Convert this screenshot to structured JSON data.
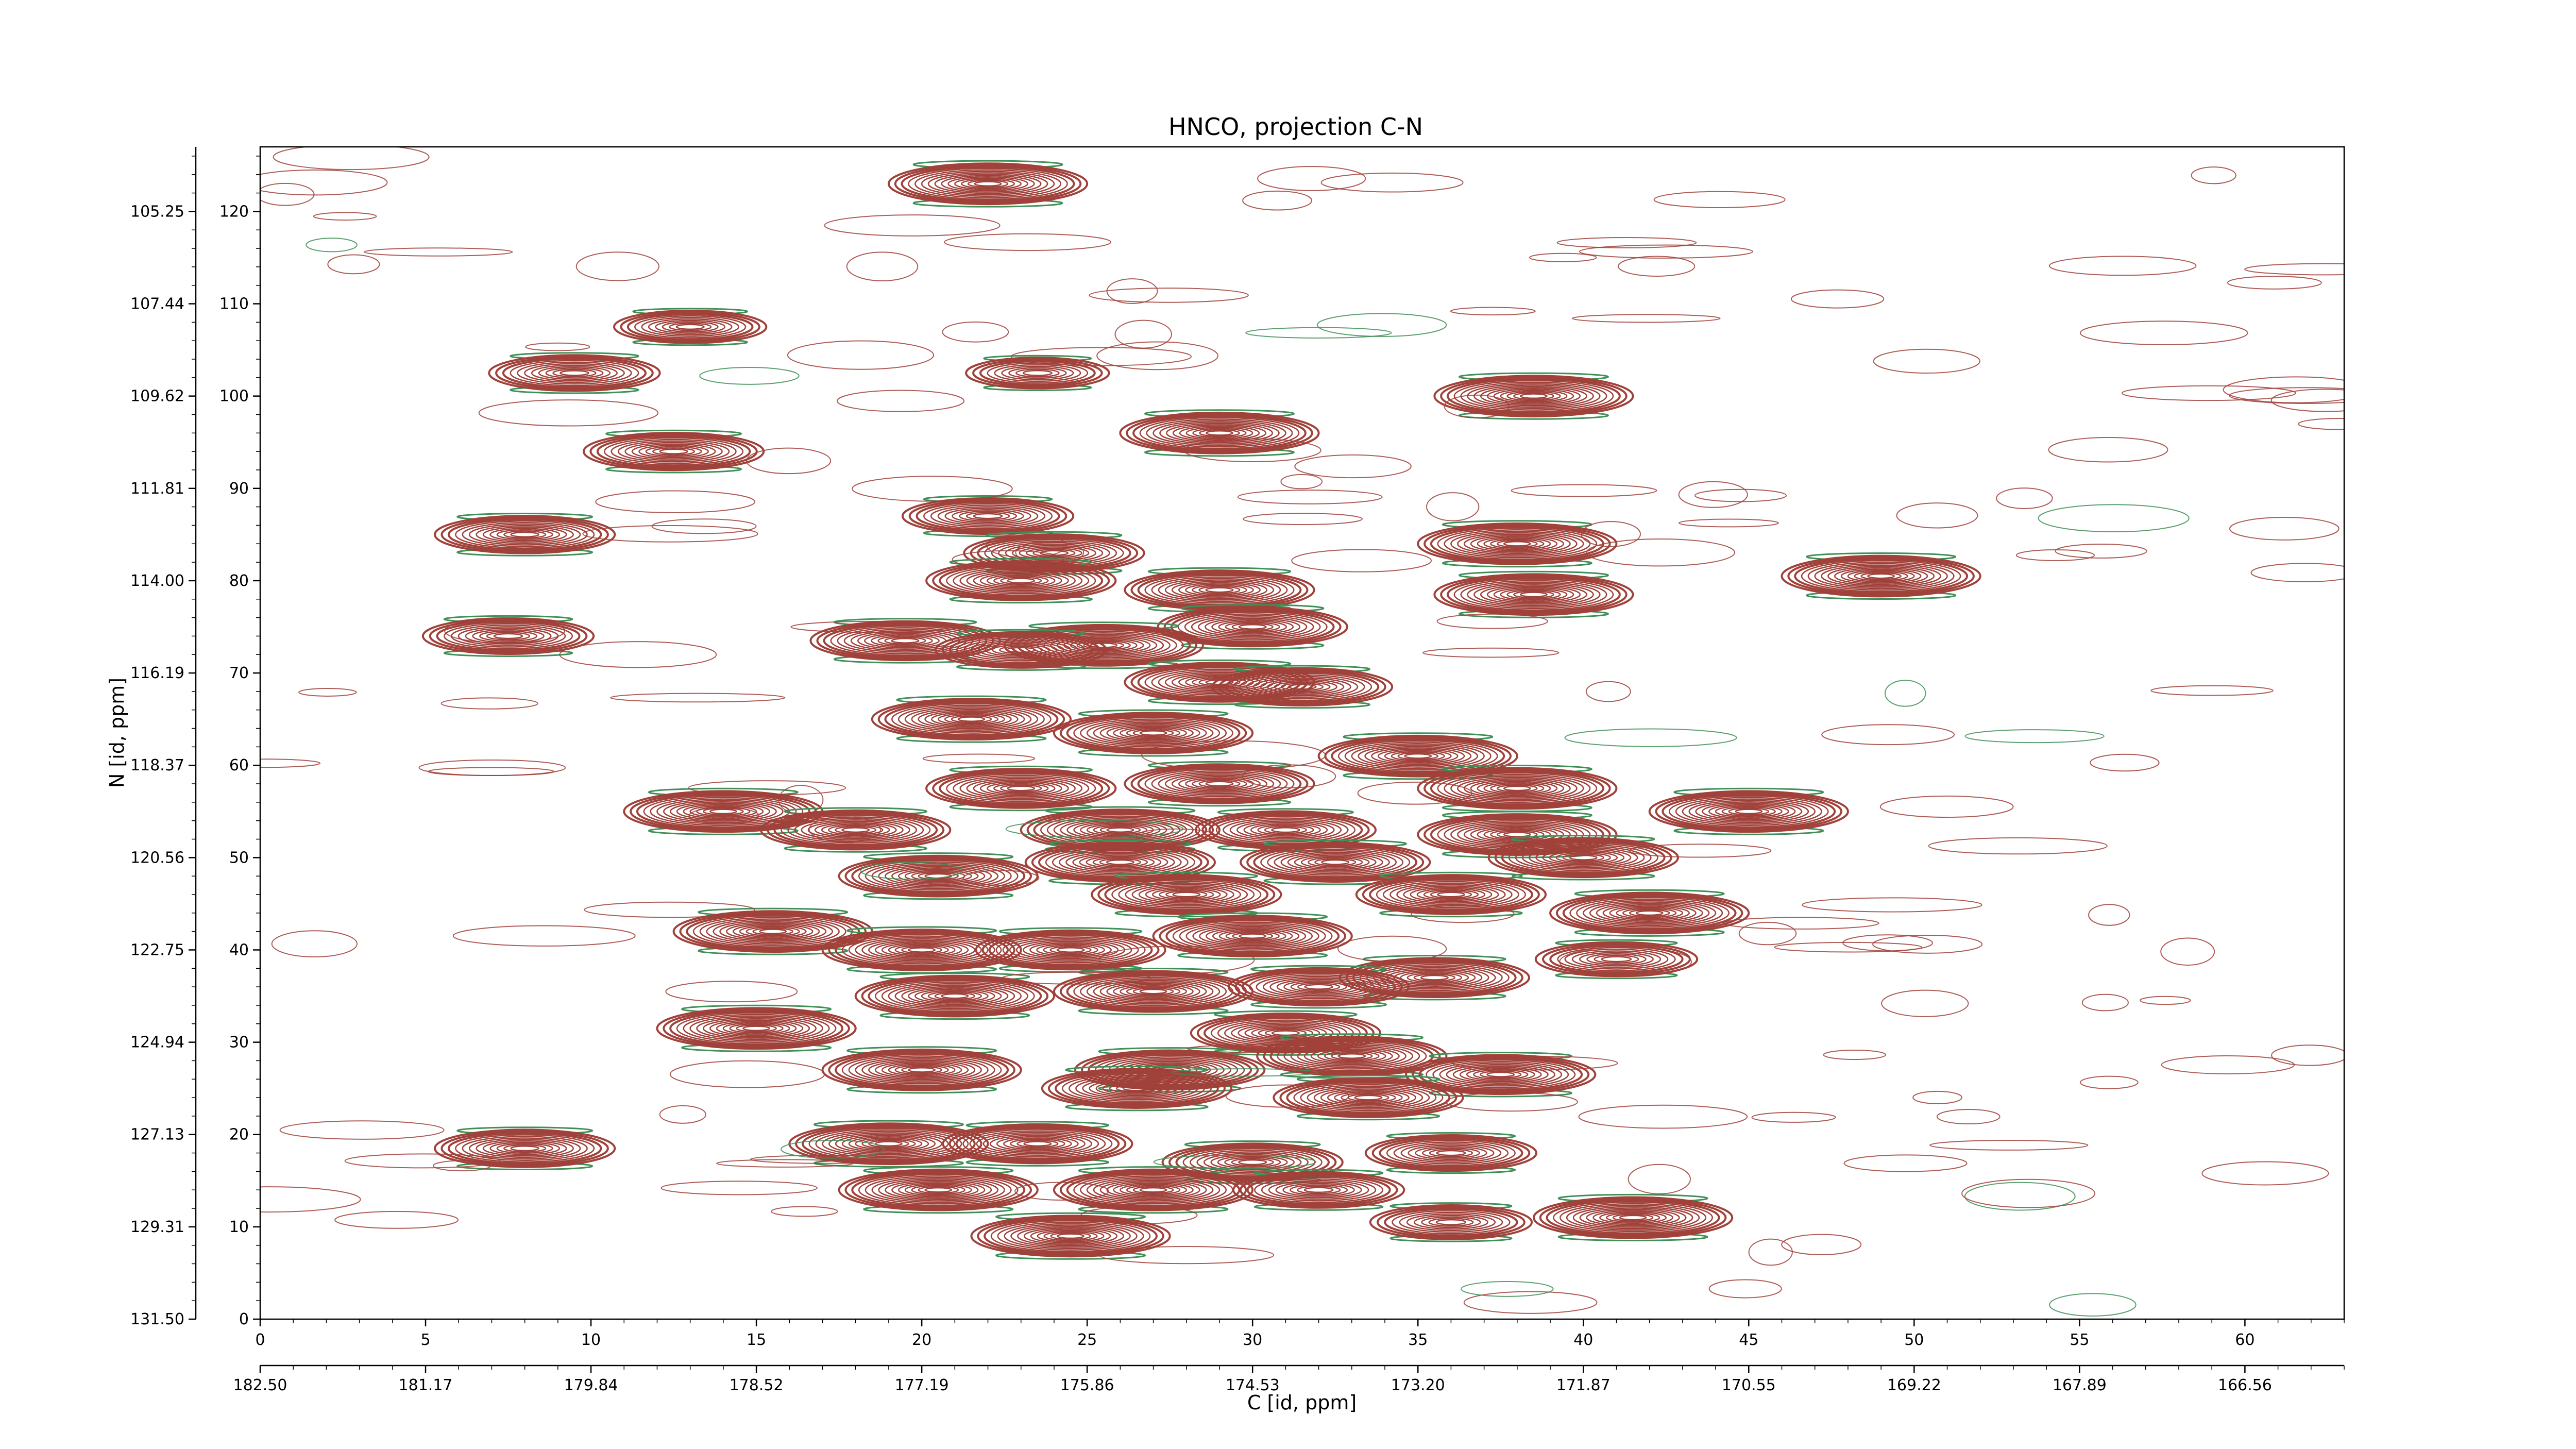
{
  "chart_data": {
    "type": "contour",
    "title": "HNCO, projection C-N",
    "xlabel": "C [id, ppm]",
    "ylabel": "N [id, ppm]",
    "x_index_ticks": [
      "0",
      "5",
      "10",
      "15",
      "20",
      "25",
      "30",
      "35",
      "40",
      "45",
      "50",
      "55",
      "60"
    ],
    "x_ppm_ticks": [
      "182.50",
      "181.17",
      "179.84",
      "178.52",
      "177.19",
      "175.86",
      "174.53",
      "173.20",
      "171.87",
      "170.55",
      "169.22",
      "167.89",
      "166.56"
    ],
    "y_index_ticks": [
      "0",
      "10",
      "20",
      "30",
      "40",
      "50",
      "60",
      "70",
      "80",
      "90",
      "100",
      "110",
      "120"
    ],
    "y_ppm_ticks": [
      "131.50",
      "129.31",
      "127.13",
      "124.94",
      "122.75",
      "120.56",
      "118.37",
      "116.19",
      "114.00",
      "111.81",
      "109.62",
      "107.44",
      "105.25"
    ],
    "xlim": [
      0,
      63
    ],
    "ylim": [
      0,
      127
    ],
    "colors": {
      "positive": "#a0413a",
      "negative": "#3f8f56"
    },
    "peaks": [
      {
        "x": 22,
        "y": 123,
        "h": 1.0
      },
      {
        "x": 38.5,
        "y": 100,
        "h": 1.0
      },
      {
        "x": 29,
        "y": 96,
        "h": 1.0
      },
      {
        "x": 9.5,
        "y": 102.5,
        "h": 0.7
      },
      {
        "x": 13,
        "y": 107.5,
        "h": 0.5
      },
      {
        "x": 12.5,
        "y": 94,
        "h": 0.8
      },
      {
        "x": 8,
        "y": 85,
        "h": 0.8
      },
      {
        "x": 23.5,
        "y": 102.5,
        "h": 0.4
      },
      {
        "x": 22,
        "y": 87,
        "h": 0.7
      },
      {
        "x": 24,
        "y": 83,
        "h": 0.8
      },
      {
        "x": 23,
        "y": 80,
        "h": 0.9
      },
      {
        "x": 29,
        "y": 79,
        "h": 0.9
      },
      {
        "x": 30,
        "y": 75,
        "h": 0.9
      },
      {
        "x": 38,
        "y": 84,
        "h": 1.0
      },
      {
        "x": 38.5,
        "y": 78.5,
        "h": 1.0
      },
      {
        "x": 49,
        "y": 80.5,
        "h": 1.0
      },
      {
        "x": 7.5,
        "y": 74,
        "h": 0.7
      },
      {
        "x": 19.5,
        "y": 73.5,
        "h": 0.9
      },
      {
        "x": 25.5,
        "y": 73,
        "h": 1.0
      },
      {
        "x": 23,
        "y": 72.5,
        "h": 0.7
      },
      {
        "x": 29,
        "y": 69,
        "h": 0.9
      },
      {
        "x": 31.5,
        "y": 68.5,
        "h": 0.8
      },
      {
        "x": 21.5,
        "y": 65,
        "h": 1.0
      },
      {
        "x": 27,
        "y": 63.5,
        "h": 1.0
      },
      {
        "x": 35,
        "y": 61,
        "h": 1.0
      },
      {
        "x": 23,
        "y": 57.5,
        "h": 0.9
      },
      {
        "x": 29,
        "y": 58,
        "h": 0.9
      },
      {
        "x": 38,
        "y": 57.5,
        "h": 1.0
      },
      {
        "x": 14,
        "y": 55,
        "h": 1.0
      },
      {
        "x": 18,
        "y": 53,
        "h": 0.9
      },
      {
        "x": 26,
        "y": 53,
        "h": 1.0
      },
      {
        "x": 31,
        "y": 53,
        "h": 0.8
      },
      {
        "x": 38,
        "y": 52.5,
        "h": 1.0
      },
      {
        "x": 45,
        "y": 55,
        "h": 1.0
      },
      {
        "x": 40,
        "y": 50,
        "h": 0.9
      },
      {
        "x": 20.5,
        "y": 48,
        "h": 1.0
      },
      {
        "x": 26,
        "y": 49.5,
        "h": 0.9
      },
      {
        "x": 32.5,
        "y": 49.5,
        "h": 0.9
      },
      {
        "x": 28,
        "y": 46,
        "h": 0.9
      },
      {
        "x": 36,
        "y": 46,
        "h": 0.9
      },
      {
        "x": 15.5,
        "y": 42,
        "h": 1.0
      },
      {
        "x": 20,
        "y": 40,
        "h": 1.0
      },
      {
        "x": 24.5,
        "y": 40,
        "h": 0.9
      },
      {
        "x": 30,
        "y": 41.5,
        "h": 1.0
      },
      {
        "x": 42,
        "y": 44,
        "h": 1.0
      },
      {
        "x": 41,
        "y": 39,
        "h": 0.6
      },
      {
        "x": 35.5,
        "y": 37,
        "h": 0.9
      },
      {
        "x": 21,
        "y": 35,
        "h": 1.0
      },
      {
        "x": 27,
        "y": 35.5,
        "h": 1.0
      },
      {
        "x": 32,
        "y": 36,
        "h": 0.8
      },
      {
        "x": 15,
        "y": 31.5,
        "h": 1.0
      },
      {
        "x": 31,
        "y": 31,
        "h": 0.9
      },
      {
        "x": 20,
        "y": 27,
        "h": 1.0
      },
      {
        "x": 27.5,
        "y": 27,
        "h": 0.9
      },
      {
        "x": 33,
        "y": 28.5,
        "h": 0.9
      },
      {
        "x": 37.5,
        "y": 26.5,
        "h": 0.9
      },
      {
        "x": 26.5,
        "y": 25,
        "h": 0.9
      },
      {
        "x": 33.5,
        "y": 24,
        "h": 0.9
      },
      {
        "x": 8,
        "y": 18.5,
        "h": 0.8
      },
      {
        "x": 19,
        "y": 19,
        "h": 1.0
      },
      {
        "x": 23.5,
        "y": 19,
        "h": 0.9
      },
      {
        "x": 30,
        "y": 17,
        "h": 0.8
      },
      {
        "x": 36,
        "y": 18,
        "h": 0.7
      },
      {
        "x": 20.5,
        "y": 14,
        "h": 1.0
      },
      {
        "x": 27,
        "y": 14,
        "h": 1.0
      },
      {
        "x": 32,
        "y": 14,
        "h": 0.7
      },
      {
        "x": 24.5,
        "y": 9,
        "h": 1.0
      },
      {
        "x": 36,
        "y": 10.5,
        "h": 0.6
      },
      {
        "x": 41.5,
        "y": 11,
        "h": 1.0
      }
    ]
  }
}
